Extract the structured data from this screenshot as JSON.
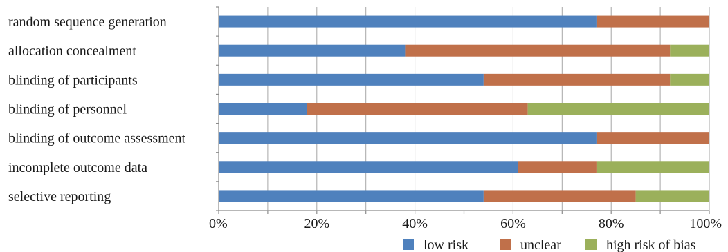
{
  "chart_data": {
    "type": "bar",
    "orientation": "horizontal",
    "stacked": true,
    "percent": true,
    "categories": [
      "random sequence generation",
      "allocation concealment",
      "blinding of participants",
      "blinding of personnel",
      "blinding of outcome assessment",
      "incomplete outcome data",
      "selective reporting"
    ],
    "series": [
      {
        "name": "low risk",
        "color": "#4F81BD",
        "values": [
          77,
          38,
          54,
          18,
          77,
          61,
          54
        ]
      },
      {
        "name": "unclear",
        "color": "#C0704A",
        "values": [
          23,
          54,
          38,
          45,
          23,
          16,
          31
        ]
      },
      {
        "name": "high risk of bias",
        "color": "#9BB05B",
        "values": [
          0,
          8,
          8,
          37,
          0,
          23,
          15
        ]
      }
    ],
    "x_ticks": [
      "0%",
      "20%",
      "40%",
      "60%",
      "80%",
      "100%"
    ],
    "xlim": [
      0,
      100
    ],
    "grid": "vertical",
    "legend_position": "bottom-right"
  }
}
